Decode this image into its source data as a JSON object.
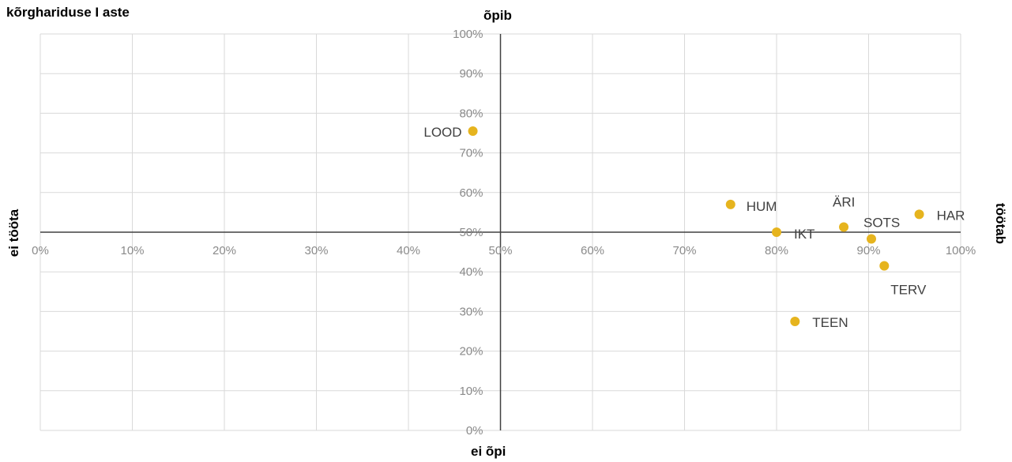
{
  "chart_data": {
    "type": "scatter",
    "title": "kõrghariduse I aste",
    "axis_names": {
      "top": "õpib",
      "bottom": "ei õpi",
      "left": "ei tööta",
      "right": "töötab"
    },
    "xlim": [
      0,
      100
    ],
    "ylim": [
      0,
      100
    ],
    "x_ticks": [
      "0%",
      "10%",
      "20%",
      "30%",
      "40%",
      "50%",
      "60%",
      "70%",
      "80%",
      "90%",
      "100%"
    ],
    "y_ticks": [
      "0%",
      "10%",
      "20%",
      "30%",
      "40%",
      "50%",
      "60%",
      "70%",
      "80%",
      "90%",
      "100%"
    ],
    "grid": true,
    "point_color": "#e6b41e",
    "points": [
      {
        "label": "LOOD",
        "x": 47.0,
        "y": 75.5
      },
      {
        "label": "HUM",
        "x": 75.0,
        "y": 57.0
      },
      {
        "label": "IKT",
        "x": 80.0,
        "y": 50.0
      },
      {
        "label": "ÄRI",
        "x": 87.3,
        "y": 51.3
      },
      {
        "label": "SOTS",
        "x": 90.3,
        "y": 48.3
      },
      {
        "label": "HAR",
        "x": 95.5,
        "y": 54.5
      },
      {
        "label": "TERV",
        "x": 91.7,
        "y": 41.5
      },
      {
        "label": "TEEN",
        "x": 82.0,
        "y": 27.5
      }
    ]
  }
}
